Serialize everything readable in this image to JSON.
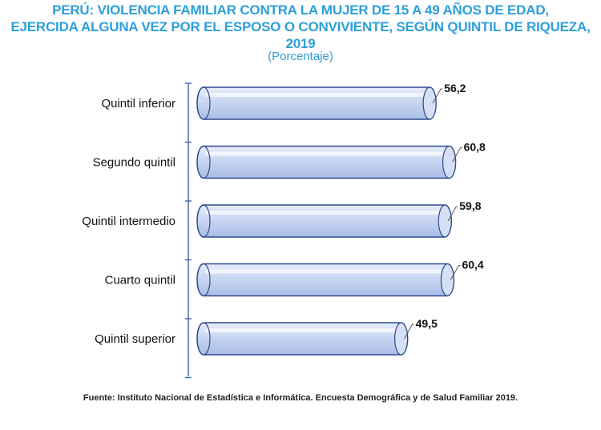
{
  "title_line1": "PERÚ: VIOLENCIA FAMILIAR CONTRA LA MUJER DE 15 A 49 AÑOS DE EDAD,",
  "title_line2": "EJERCIDA ALGUNA VEZ POR EL ESPOSO O CONVIVIENTE, SEGÚN QUINTIL DE RIQUEZA, 2019",
  "subtitle": "(Porcentaje)",
  "source": "Fuente: Instituto Nacional de Estadística e Informática. Encuesta Demográfica y de Salud Familiar 2019.",
  "chart_data": {
    "type": "bar",
    "orientation": "horizontal",
    "categories": [
      "Quintil inferior",
      "Segundo quintil",
      "Quintil intermedio",
      "Cuarto quintil",
      "Quintil superior"
    ],
    "values": [
      56.2,
      60.8,
      59.8,
      60.4,
      49.5
    ],
    "value_labels": [
      "56,2",
      "60,8",
      "59,8",
      "60,4",
      "49,5"
    ],
    "xlim": [
      0,
      72
    ],
    "grid": false,
    "legend": "none",
    "bar_color": "#c9d6f2",
    "bar_outline": "#2f4a8a",
    "title_color": "#2e9fd9"
  }
}
